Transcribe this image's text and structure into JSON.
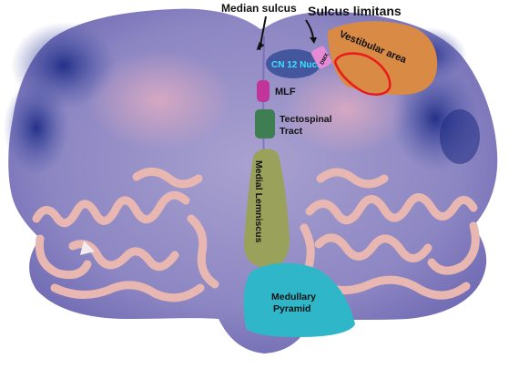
{
  "labels": {
    "median_sulcus": "Median sulcus",
    "sulcus_limitans": "Sulcus limitans",
    "vestibular_area": "Vestibular area",
    "cn12_nucleus": "CN 12 Nuc.",
    "dmx": "DMX",
    "mlf": "MLF",
    "tectospinal_line1": "Tectospinal",
    "tectospinal_line2": "Tract",
    "medial_lemniscus": "Medial Lemniscus",
    "pyramid_line1": "Medullary",
    "pyramid_line2": "Pyramid"
  },
  "colors": {
    "background": "#ffffff",
    "tissue_base": "#8a85c2",
    "tissue_pink": "#d7a7c0",
    "olive_folds": "#e7b8b3",
    "stain_dark": "#2c3c96",
    "vestibular_area": "#d98a45",
    "cn12_nucleus": "#44579e",
    "dmx": "#e58ad4",
    "mlf": "#c0359a",
    "tectospinal": "#3f7d52",
    "medial_lemniscus": "#9aa15a",
    "pyramid": "#2fb7c9",
    "outline_highlight": "#e81a1a",
    "text_dark": "#111111",
    "text_cyan": "#39e1ff"
  }
}
